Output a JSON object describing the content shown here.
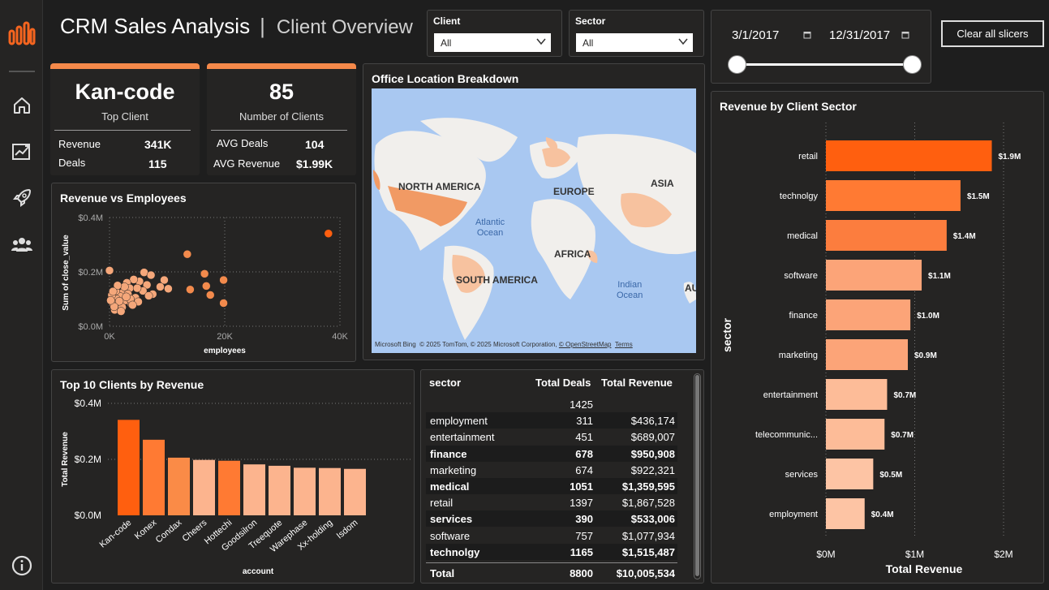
{
  "header": {
    "title": "CRM Sales Analysis",
    "separator": "|",
    "subtitle": "Client Overview"
  },
  "sidebar": {
    "logo_icon": "bar-chart-logo-icon",
    "items": [
      {
        "icon": "home-icon"
      },
      {
        "icon": "trend-chart-icon"
      },
      {
        "icon": "rocket-icon"
      },
      {
        "icon": "people-icon"
      },
      {
        "icon": "info-icon"
      }
    ]
  },
  "filters": {
    "client": {
      "label": "Client",
      "value": "All"
    },
    "sector": {
      "label": "Sector",
      "value": "All"
    },
    "date_range": {
      "start": "3/1/2017",
      "end": "12/31/2017"
    },
    "clear_label": "Clear all slicers"
  },
  "kpis": {
    "top_client": {
      "value": "Kan-code",
      "caption": "Top Client",
      "rows": [
        {
          "label": "Revenue",
          "value": "341K"
        },
        {
          "label": "Deals",
          "value": "115"
        }
      ]
    },
    "clients": {
      "value": "85",
      "caption": "Number of Clients",
      "rows": [
        {
          "label": "AVG Deals",
          "value": "104"
        },
        {
          "label": "AVG Revenue",
          "value": "$1.99K"
        }
      ]
    }
  },
  "colors": {
    "accent": "#f5894a",
    "dark_orange": "#ff5f0f",
    "panel": "#252423",
    "background": "#1e1e1e"
  },
  "scatter": {
    "title": "Revenue vs Employees",
    "xlabel": "employees",
    "ylabel": "Sum of close_value",
    "x_ticks": [
      "0K",
      "20K",
      "40K"
    ],
    "y_ticks": [
      "$0.0M",
      "$0.2M",
      "$0.4M"
    ]
  },
  "map": {
    "title": "Office Location Breakdown",
    "continents": [
      "NORTH AMERICA",
      "EUROPE",
      "ASIA",
      "AFRICA",
      "SOUTH AMERICA",
      "AU"
    ],
    "oceans": [
      {
        "line1": "Atlantic",
        "line2": "Ocean"
      },
      {
        "line1": "Indian",
        "line2": "Ocean"
      }
    ],
    "credit": {
      "brand": "Microsoft Bing",
      "text": "© 2025 TomTom, © 2025 Microsoft Corporation,",
      "osm": "© OpenStreetMap",
      "terms": "Terms"
    }
  },
  "top_clients": {
    "title": "Top 10 Clients by Revenue",
    "xlabel": "account",
    "ylabel": "Total Revenue",
    "y_ticks": [
      "$0.0M",
      "$0.2M",
      "$0.4M"
    ]
  },
  "sector_table": {
    "headers": [
      "sector",
      "Total Deals",
      "Total Revenue"
    ],
    "rows": [
      {
        "sector": "",
        "deals": "1425",
        "revenue": ""
      },
      {
        "sector": "employment",
        "deals": "311",
        "revenue": "$436,174"
      },
      {
        "sector": "entertainment",
        "deals": "451",
        "revenue": "$689,007"
      },
      {
        "sector": "finance",
        "deals": "678",
        "revenue": "$950,908"
      },
      {
        "sector": "marketing",
        "deals": "674",
        "revenue": "$922,321"
      },
      {
        "sector": "medical",
        "deals": "1051",
        "revenue": "$1,359,595"
      },
      {
        "sector": "retail",
        "deals": "1397",
        "revenue": "$1,867,528"
      },
      {
        "sector": "services",
        "deals": "390",
        "revenue": "$533,006"
      },
      {
        "sector": "software",
        "deals": "757",
        "revenue": "$1,077,934"
      },
      {
        "sector": "technolgy",
        "deals": "1165",
        "revenue": "$1,515,487"
      }
    ],
    "total": {
      "label": "Total",
      "deals": "8800",
      "revenue": "$10,005,534"
    }
  },
  "sector_chart": {
    "title": "Revenue by Client Sector",
    "xlabel": "Total Revenue",
    "ylabel": "sector",
    "x_ticks": [
      "$0M",
      "$1M",
      "$2M"
    ]
  },
  "chart_data": [
    {
      "type": "scatter",
      "title": "Revenue vs Employees",
      "xlabel": "employees",
      "ylabel": "Sum of close_value",
      "xlim": [
        0,
        40000
      ],
      "ylim": [
        0,
        400000
      ],
      "points": [
        [
          38000,
          341000
        ],
        [
          13500,
          265000
        ],
        [
          16500,
          193000
        ],
        [
          19800,
          170000
        ],
        [
          16800,
          148000
        ],
        [
          14000,
          135000
        ],
        [
          17500,
          115000
        ],
        [
          19800,
          85000
        ],
        [
          0,
          205000
        ],
        [
          6000,
          198000
        ],
        [
          7200,
          188000
        ],
        [
          9500,
          170000
        ],
        [
          10200,
          138000
        ],
        [
          6500,
          152000
        ],
        [
          8800,
          145000
        ],
        [
          5200,
          165000
        ],
        [
          4200,
          172000
        ],
        [
          3000,
          160000
        ],
        [
          3500,
          140000
        ],
        [
          2400,
          125000
        ],
        [
          5800,
          130000
        ],
        [
          7500,
          118000
        ],
        [
          1800,
          110000
        ],
        [
          2800,
          95000
        ],
        [
          1200,
          100000
        ],
        [
          600,
          85000
        ],
        [
          1500,
          78000
        ],
        [
          3800,
          82000
        ],
        [
          2200,
          70000
        ],
        [
          900,
          60000
        ],
        [
          4500,
          105000
        ],
        [
          6800,
          112000
        ],
        [
          1100,
          130000
        ],
        [
          2600,
          145000
        ],
        [
          400,
          115000
        ],
        [
          3200,
          118000
        ],
        [
          5000,
          90000
        ],
        [
          1700,
          92000
        ],
        [
          800,
          72000
        ],
        [
          2000,
          55000
        ],
        [
          3600,
          100000
        ],
        [
          4800,
          140000
        ],
        [
          200,
          95000
        ],
        [
          1400,
          150000
        ],
        [
          2900,
          108000
        ],
        [
          600,
          128000
        ],
        [
          4000,
          78000
        ]
      ]
    },
    {
      "type": "bar",
      "title": "Top 10 Clients by Revenue",
      "xlabel": "account",
      "ylabel": "Total Revenue",
      "ylim": [
        0,
        400000
      ],
      "categories": [
        "Kan-code",
        "Konex",
        "Condax",
        "Cheers",
        "Hottechi",
        "Goodsilron",
        "Treequote",
        "Warephase",
        "Xx-holding",
        "Isdom"
      ],
      "values": [
        341000,
        270000,
        206000,
        198000,
        195000,
        182000,
        177000,
        170000,
        169000,
        166000
      ],
      "colors": [
        "#ff5f0f",
        "#ff7a33",
        "#fa8b47",
        "#fcb48e",
        "#ff7a33",
        "#fcb48e",
        "#fcb48e",
        "#fcb48e",
        "#fcb48e",
        "#fcb48e"
      ]
    },
    {
      "type": "bar",
      "orientation": "horizontal",
      "title": "Revenue by Client Sector",
      "xlabel": "Total Revenue",
      "ylabel": "sector",
      "xlim": [
        0,
        2000000
      ],
      "categories": [
        "retail",
        "technolgy",
        "medical",
        "software",
        "finance",
        "marketing",
        "entertainment",
        "telecommunic...",
        "services",
        "employment"
      ],
      "values": [
        1867528,
        1515487,
        1359595,
        1077934,
        950908,
        922321,
        689007,
        660000,
        533006,
        436174
      ],
      "labels": [
        "$1.9M",
        "$1.5M",
        "$1.4M",
        "$1.1M",
        "$1.0M",
        "$0.9M",
        "$0.7M",
        "$0.7M",
        "$0.5M",
        "$0.4M"
      ],
      "colors": [
        "#ff5f0f",
        "#ff7a33",
        "#fc7d3e",
        "#fca478",
        "#fca478",
        "#fca478",
        "#fdbc98",
        "#fdbc98",
        "#fdc4a4",
        "#fdc4a4"
      ]
    }
  ]
}
